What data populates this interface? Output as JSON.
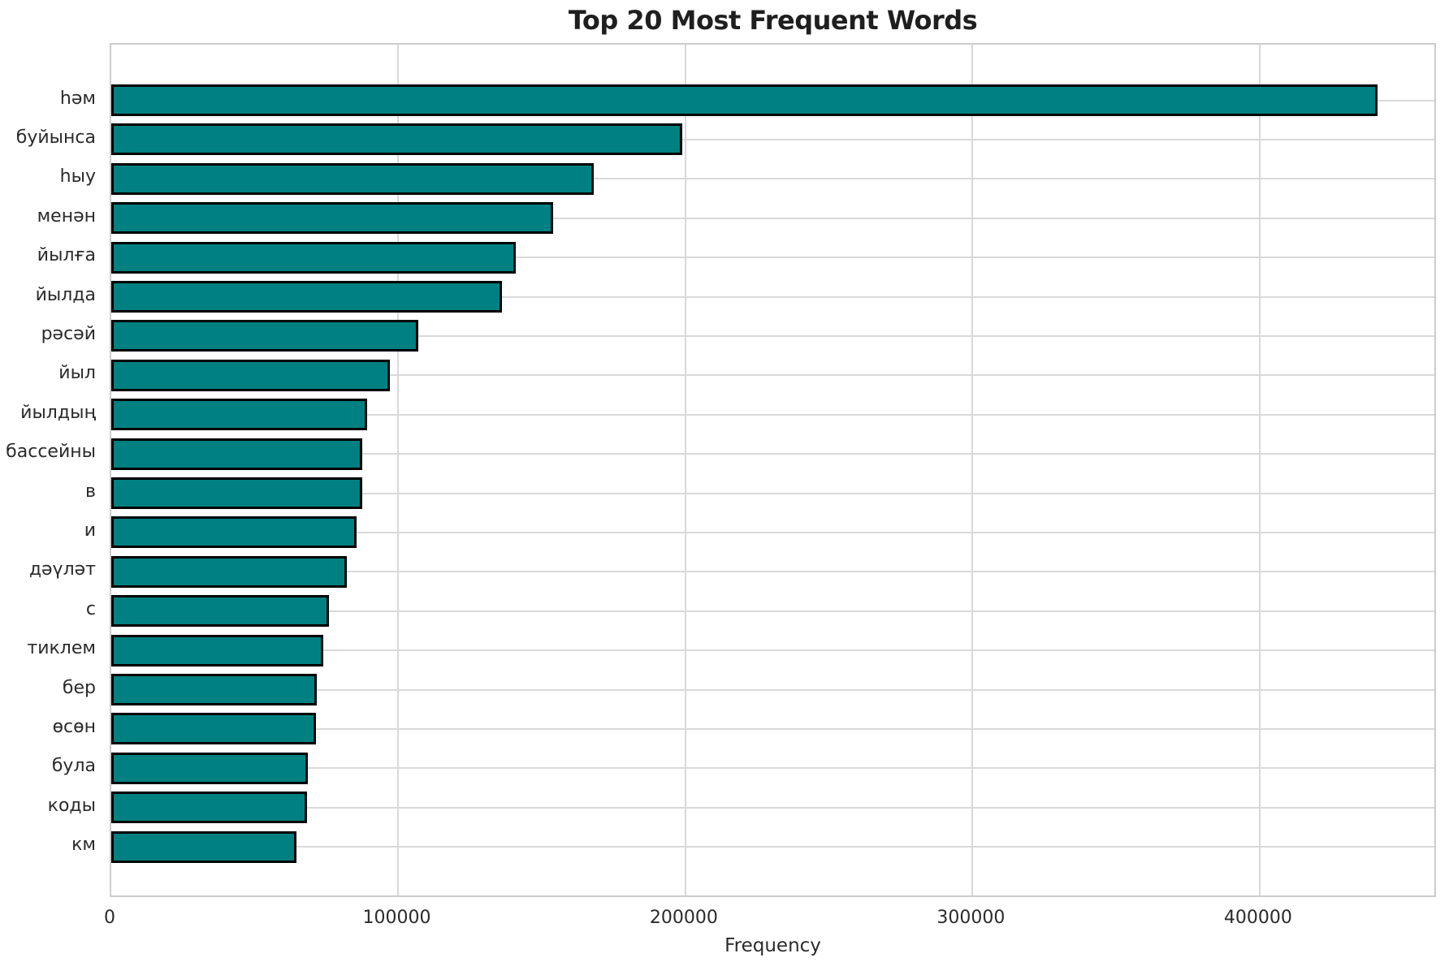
{
  "chart_data": {
    "type": "bar",
    "orientation": "horizontal",
    "title": "Top 20 Most Frequent Words",
    "xlabel": "Frequency",
    "ylabel": "",
    "categories": [
      "һәм",
      "буйынса",
      "һыу",
      "менән",
      "йылға",
      "йылда",
      "рәсәй",
      "йыл",
      "йылдың",
      "бассейны",
      "в",
      "и",
      "дәүләт",
      "с",
      "тиклем",
      "бер",
      "өсөн",
      "була",
      "коды",
      "км"
    ],
    "values": [
      441000,
      199000,
      168000,
      154000,
      141000,
      136000,
      107000,
      97000,
      89200,
      87400,
      87300,
      85500,
      82000,
      75800,
      73900,
      71600,
      71300,
      68500,
      68100,
      64500
    ],
    "xlim": [
      0,
      462000
    ],
    "xticks": [
      0,
      100000,
      200000,
      300000,
      400000
    ],
    "xtick_labels": [
      "0",
      "100000",
      "200000",
      "300000",
      "400000"
    ],
    "grid": true,
    "legend": false,
    "colors": {
      "bar_fill": "#008080",
      "bar_edge": "#000000",
      "grid": "#d9d9d9",
      "spine": "#cccccc",
      "background": "#ffffff",
      "title_text": "#1f1f1f",
      "tick_text": "#2b2b2b"
    }
  }
}
